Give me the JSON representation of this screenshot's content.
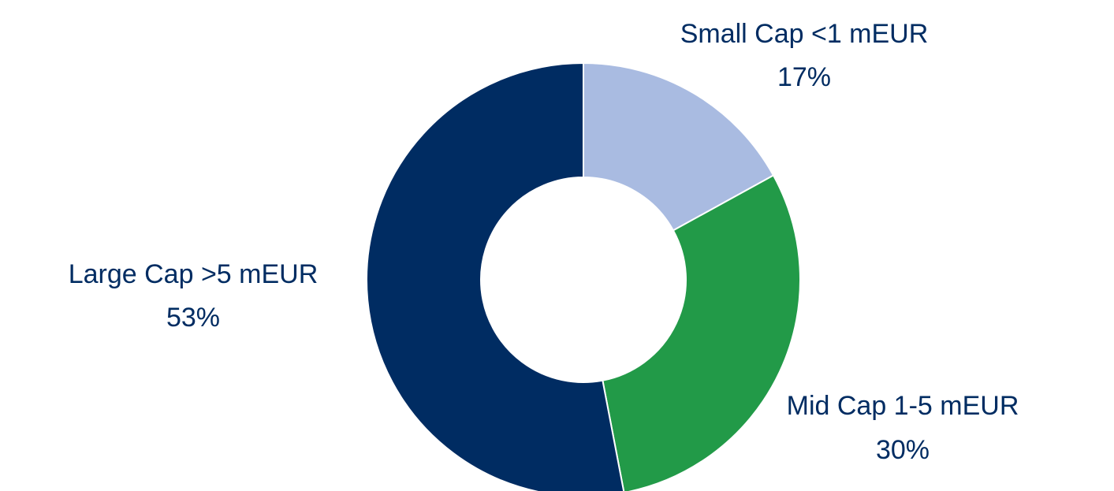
{
  "chart_data": {
    "type": "donut",
    "categories": [
      "Small Cap <1 mEUR",
      "Mid Cap 1-5 mEUR",
      "Large Cap >5 mEUR"
    ],
    "values": [
      17,
      30,
      53
    ],
    "value_labels": [
      "17%",
      "30%",
      "53%"
    ],
    "colors": [
      "#a9bbe1",
      "#229a48",
      "#002c62"
    ]
  }
}
